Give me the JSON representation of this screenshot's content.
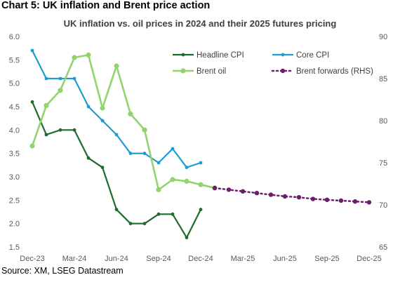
{
  "header": "Chart 5: UK inflation and Brent price action",
  "source": "Source: XM, LSEG Datastream",
  "chart_data": {
    "type": "line",
    "title": "UK inflation vs. oil prices in 2024 and their 2025 futures pricing",
    "x_axis": {
      "tick_labels": [
        "Dec-23",
        "Mar-24",
        "Jun-24",
        "Sep-24",
        "Dec-24",
        "Mar-25",
        "Jun-25",
        "Sep-25",
        "Dec-25"
      ],
      "range": [
        "Dec-23",
        "Dec-25"
      ]
    },
    "y_left": {
      "range": [
        1.5,
        6.0
      ],
      "step": 0.5,
      "tick_labels": [
        "1.5",
        "2.0",
        "2.5",
        "3.0",
        "3.5",
        "4.0",
        "4.5",
        "5.0",
        "5.5",
        "6.0"
      ]
    },
    "y_right": {
      "range": [
        65,
        90
      ],
      "step": 5,
      "tick_labels": [
        "65",
        "70",
        "75",
        "80",
        "85",
        "90"
      ]
    },
    "legend": {
      "placement": "top-right",
      "columns": 2
    },
    "grid": false,
    "series": [
      {
        "name": "Headline CPI",
        "axis": "left",
        "color": "#1e6b2e",
        "style": "solid",
        "x": [
          "Dec-23",
          "Jan-24",
          "Feb-24",
          "Mar-24",
          "Apr-24",
          "May-24",
          "Jun-24",
          "Jul-24",
          "Aug-24",
          "Sep-24",
          "Oct-24",
          "Nov-24",
          "Dec-24"
        ],
        "values": [
          4.6,
          3.9,
          4.0,
          4.0,
          3.4,
          3.2,
          2.3,
          2.0,
          2.0,
          2.2,
          2.2,
          1.7,
          2.3
        ]
      },
      {
        "name": "Core CPI",
        "axis": "left",
        "color": "#1f9bd3",
        "style": "solid",
        "x": [
          "Dec-23",
          "Jan-24",
          "Feb-24",
          "Mar-24",
          "Apr-24",
          "May-24",
          "Jun-24",
          "Jul-24",
          "Aug-24",
          "Sep-24",
          "Oct-24",
          "Nov-24",
          "Dec-24"
        ],
        "values": [
          5.7,
          5.1,
          5.1,
          5.1,
          4.5,
          4.2,
          3.9,
          3.5,
          3.5,
          3.3,
          3.6,
          3.2,
          3.3
        ]
      },
      {
        "name": "Brent oil",
        "axis": "right",
        "color": "#92d36e",
        "style": "solid",
        "x": [
          "Dec-23",
          "Jan-24",
          "Feb-24",
          "Mar-24",
          "Apr-24",
          "May-24",
          "Jun-24",
          "Jul-24",
          "Aug-24",
          "Sep-24",
          "Oct-24",
          "Nov-24",
          "Dec-24",
          "Jan-25"
        ],
        "values": [
          77.0,
          81.8,
          83.6,
          87.5,
          87.8,
          81.5,
          86.5,
          80.8,
          78.9,
          71.8,
          73.0,
          72.8,
          72.4,
          72.0
        ]
      },
      {
        "name": "Brent forwards (RHS)",
        "axis": "right",
        "color": "#6b1f6b",
        "style": "dotted",
        "x": [
          "Jan-25",
          "Feb-25",
          "Mar-25",
          "Apr-25",
          "May-25",
          "Jun-25",
          "Jul-25",
          "Aug-25",
          "Sep-25",
          "Oct-25",
          "Nov-25",
          "Dec-25"
        ],
        "values": [
          72.0,
          71.8,
          71.6,
          71.4,
          71.2,
          71.0,
          70.9,
          70.7,
          70.6,
          70.5,
          70.4,
          70.3
        ]
      }
    ]
  }
}
